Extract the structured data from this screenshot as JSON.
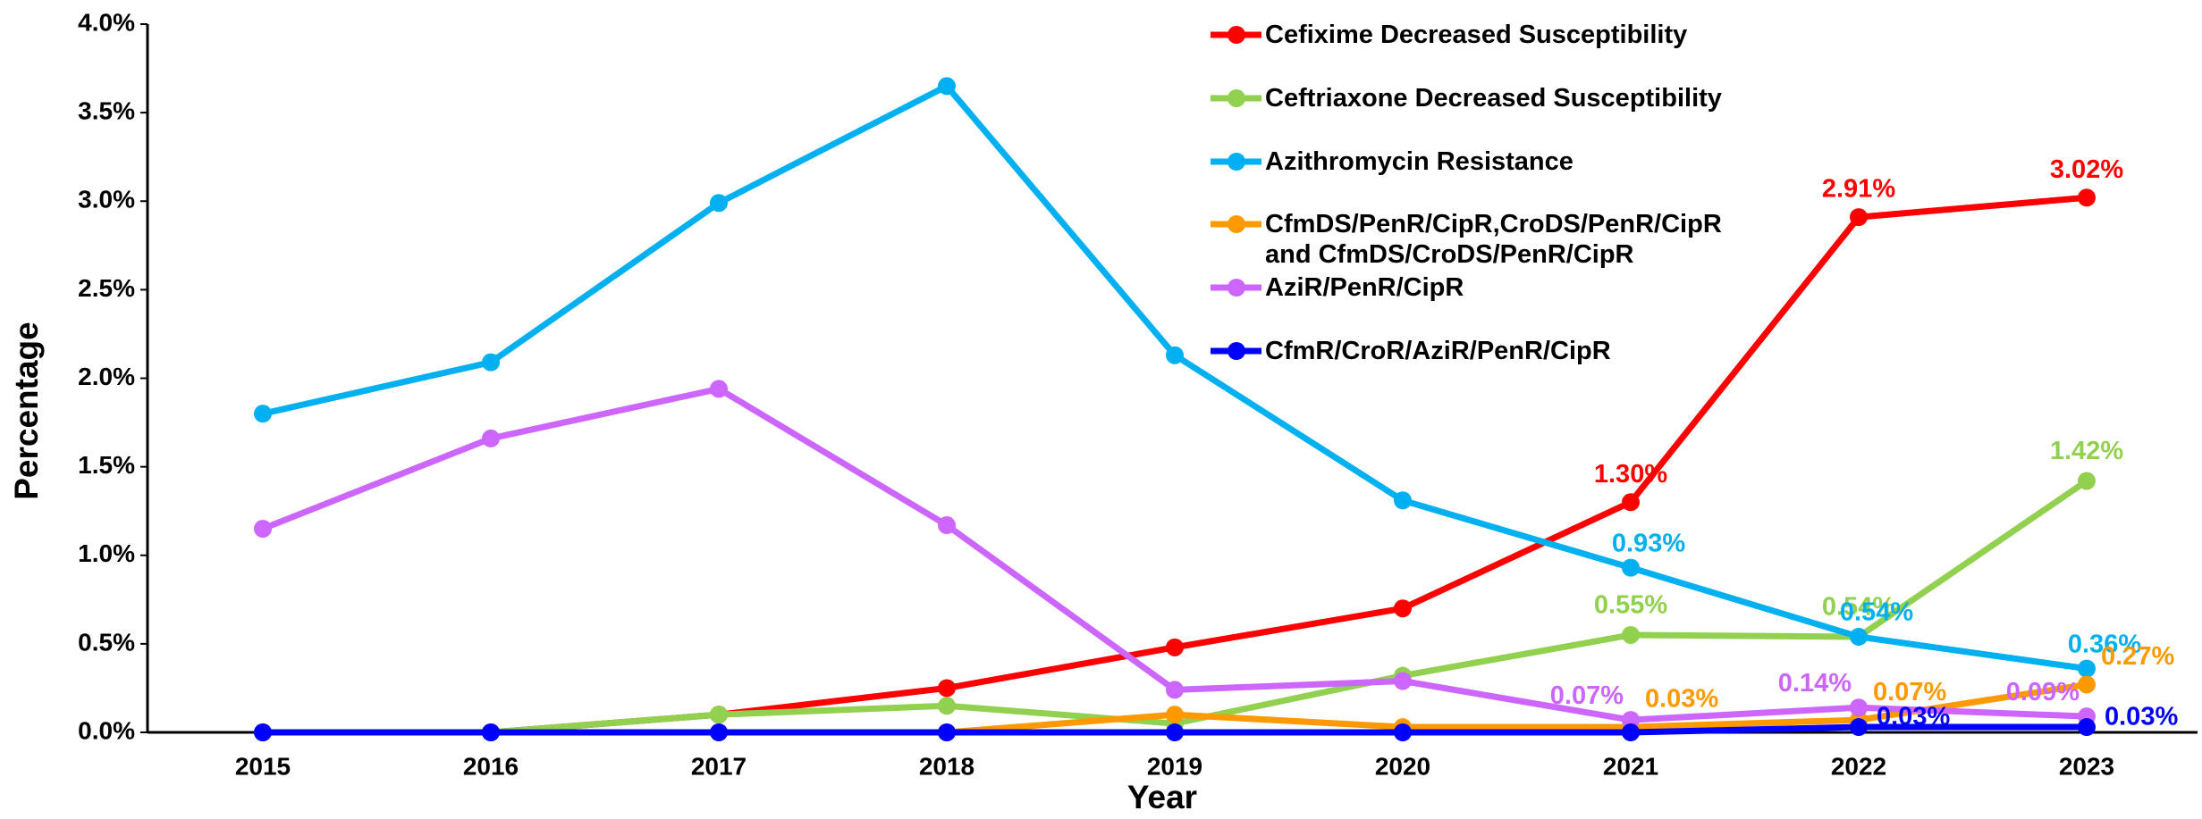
{
  "chart_data": {
    "type": "line",
    "x_label": "Year",
    "y_label": "Percentage",
    "categories": [
      "2015",
      "2016",
      "2017",
      "2018",
      "2019",
      "2020",
      "2021",
      "2022",
      "2023"
    ],
    "ylim": [
      0,
      4
    ],
    "yticks": [
      {
        "value": 0,
        "label": "0.0%"
      },
      {
        "value": 0.5,
        "label": "0.5%"
      },
      {
        "value": 1,
        "label": "1.0%"
      },
      {
        "value": 1.5,
        "label": "1.5%"
      },
      {
        "value": 2,
        "label": "2.0%"
      },
      {
        "value": 2.5,
        "label": "2.5%"
      },
      {
        "value": 3,
        "label": "3.0%"
      },
      {
        "value": 3.5,
        "label": "3.5%"
      },
      {
        "value": 4,
        "label": "4.0%"
      }
    ],
    "legend": "top-right",
    "series": [
      {
        "name": "Cefixime Decreased Susceptibility",
        "color": "#ff0000",
        "values": [
          0,
          0,
          0.1,
          0.25,
          0.48,
          0.7,
          1.3,
          2.91,
          3.02
        ],
        "value_labels": [
          null,
          null,
          null,
          null,
          null,
          null,
          "1.30%",
          "2.91%",
          "3.02%"
        ]
      },
      {
        "name": "Ceftriaxone Decreased Susceptibility",
        "color": "#92d050",
        "values": [
          0,
          0,
          0.1,
          0.15,
          0.05,
          0.32,
          0.55,
          0.54,
          1.42
        ],
        "value_labels": [
          null,
          null,
          null,
          null,
          null,
          null,
          "0.55%",
          "0.54%",
          "1.42%"
        ]
      },
      {
        "name": "Azithromycin Resistance",
        "color": "#00b0f0",
        "values": [
          1.8,
          2.09,
          2.99,
          3.65,
          2.13,
          1.31,
          0.93,
          0.54,
          0.36
        ],
        "value_labels": [
          null,
          null,
          null,
          null,
          null,
          null,
          "0.93%",
          "0.54%",
          "0.36%"
        ]
      },
      {
        "name": "CfmDS/PenR/CipR,CroDS/PenR/CipR\nand CfmDS/CroDS/PenR/CipR",
        "color": "#ff9900",
        "values": [
          null,
          null,
          null,
          0,
          0.1,
          0.03,
          0.03,
          0.07,
          0.27
        ],
        "value_labels": [
          null,
          null,
          null,
          null,
          null,
          null,
          "0.03%",
          "0.07%",
          "0.27%"
        ]
      },
      {
        "name": "AziR/PenR/CipR",
        "color": "#cc66ff",
        "values": [
          1.15,
          1.66,
          1.94,
          1.17,
          0.24,
          0.29,
          0.07,
          0.14,
          0.09
        ],
        "value_labels": [
          null,
          null,
          null,
          null,
          null,
          null,
          "0.07%",
          "0.14%",
          "0.09%"
        ]
      },
      {
        "name": "CfmR/CroR/AziR/PenR/CipR",
        "color": "#0000ff",
        "values": [
          0,
          0,
          0,
          0,
          0,
          0,
          0,
          0.03,
          0.03
        ],
        "value_labels": [
          null,
          null,
          null,
          null,
          null,
          null,
          null,
          "0.03%",
          "0.03%"
        ]
      }
    ]
  }
}
